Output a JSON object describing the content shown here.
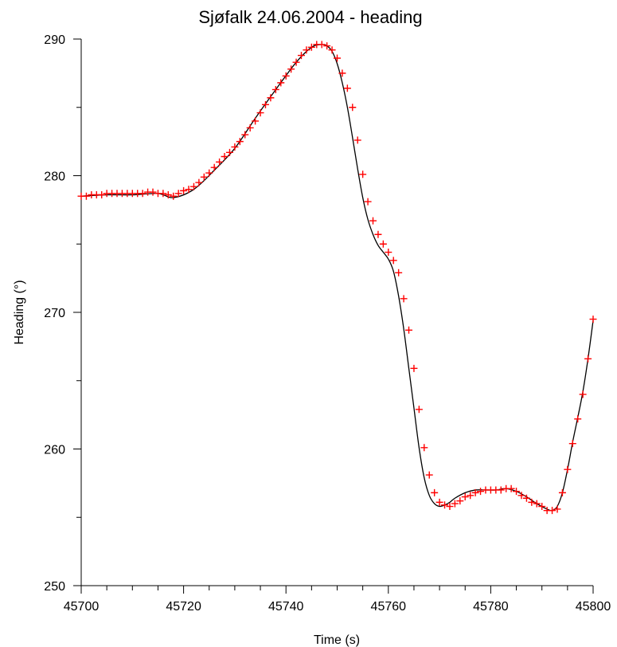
{
  "chart_data": {
    "type": "line",
    "title": "Sjøfalk 24.06.2004 - heading",
    "xlabel": "Time (s)",
    "ylabel": "Heading (°)",
    "xlim": [
      45700,
      45800
    ],
    "ylim": [
      250,
      290
    ],
    "x_major_ticks": [
      45700,
      45720,
      45740,
      45760,
      45780,
      45800
    ],
    "x_minor_step": 5,
    "y_major_ticks": [
      250,
      260,
      270,
      280,
      290
    ],
    "y_minor_step": 5,
    "grid": false,
    "legend": "none",
    "series": [
      {
        "style": "line",
        "color": "#000000",
        "x": [
          45700,
          45705,
          45710,
          45715,
          45718,
          45722,
          45726,
          45730,
          45734,
          45738,
          45742,
          45745,
          45747,
          45748,
          45749,
          45750,
          45751,
          45752,
          45753,
          45754,
          45755,
          45756,
          45757,
          45758,
          45759,
          45760,
          45761,
          45762,
          45763,
          45764,
          45765,
          45766,
          45767,
          45768,
          45769,
          45770,
          45771,
          45772,
          45773,
          45775,
          45777,
          45779,
          45781,
          45783,
          45785,
          45787,
          45789,
          45791,
          45792,
          45793,
          45794,
          45795,
          45796,
          45797,
          45798,
          45799,
          45800
        ],
        "y": [
          278.5,
          278.6,
          278.6,
          278.7,
          278.4,
          279.0,
          280.4,
          282.0,
          284.2,
          286.3,
          288.3,
          289.4,
          289.6,
          289.5,
          289.1,
          288.2,
          286.8,
          285.0,
          282.8,
          280.5,
          278.4,
          276.8,
          275.7,
          274.9,
          274.4,
          273.9,
          273.0,
          271.2,
          268.8,
          265.9,
          263.0,
          260.1,
          257.9,
          256.6,
          256.0,
          255.8,
          255.9,
          256.1,
          256.4,
          256.8,
          257.0,
          257.0,
          257.0,
          257.1,
          256.9,
          256.5,
          256.0,
          255.6,
          255.5,
          255.8,
          256.8,
          258.5,
          260.5,
          262.3,
          264.2,
          266.6,
          269.4
        ]
      },
      {
        "style": "markers",
        "marker": "+",
        "color": "#ff0000",
        "x": [
          45700,
          45701,
          45702,
          45703,
          45704,
          45705,
          45706,
          45707,
          45708,
          45709,
          45710,
          45711,
          45712,
          45713,
          45714,
          45715,
          45716,
          45717,
          45718,
          45719,
          45720,
          45721,
          45722,
          45723,
          45724,
          45725,
          45726,
          45727,
          45728,
          45729,
          45730,
          45731,
          45732,
          45733,
          45734,
          45735,
          45736,
          45737,
          45738,
          45739,
          45740,
          45741,
          45742,
          45743,
          45744,
          45745,
          45746,
          45747,
          45748,
          45749,
          45750,
          45751,
          45752,
          45753,
          45754,
          45755,
          45756,
          45757,
          45758,
          45759,
          45760,
          45761,
          45762,
          45763,
          45764,
          45765,
          45766,
          45767,
          45768,
          45769,
          45770,
          45771,
          45772,
          45773,
          45774,
          45775,
          45776,
          45777,
          45778,
          45779,
          45780,
          45781,
          45782,
          45783,
          45784,
          45785,
          45786,
          45787,
          45788,
          45789,
          45790,
          45791,
          45792,
          45793,
          45794,
          45795,
          45796,
          45797,
          45798,
          45799,
          45800
        ],
        "y": [
          278.5,
          278.5,
          278.6,
          278.6,
          278.6,
          278.7,
          278.7,
          278.7,
          278.7,
          278.7,
          278.7,
          278.7,
          278.7,
          278.8,
          278.8,
          278.7,
          278.7,
          278.6,
          278.5,
          278.7,
          278.9,
          279.0,
          279.2,
          279.5,
          279.9,
          280.2,
          280.6,
          281.0,
          281.4,
          281.7,
          282.1,
          282.5,
          283.0,
          283.5,
          284.0,
          284.6,
          285.2,
          285.7,
          286.3,
          286.8,
          287.3,
          287.8,
          288.3,
          288.8,
          289.2,
          289.4,
          289.6,
          289.6,
          289.5,
          289.2,
          288.6,
          287.5,
          286.4,
          285.0,
          282.6,
          280.1,
          278.1,
          276.7,
          275.7,
          275.0,
          274.4,
          273.8,
          272.9,
          271.0,
          268.7,
          265.9,
          262.9,
          260.1,
          258.1,
          256.8,
          256.1,
          255.9,
          255.8,
          256.0,
          256.2,
          256.5,
          256.6,
          256.8,
          256.9,
          257.0,
          257.0,
          257.0,
          257.0,
          257.1,
          257.1,
          256.9,
          256.6,
          256.4,
          256.1,
          256.0,
          255.8,
          255.5,
          255.5,
          255.6,
          256.8,
          258.5,
          260.4,
          262.2,
          264.0,
          266.6,
          269.5
        ]
      }
    ]
  }
}
